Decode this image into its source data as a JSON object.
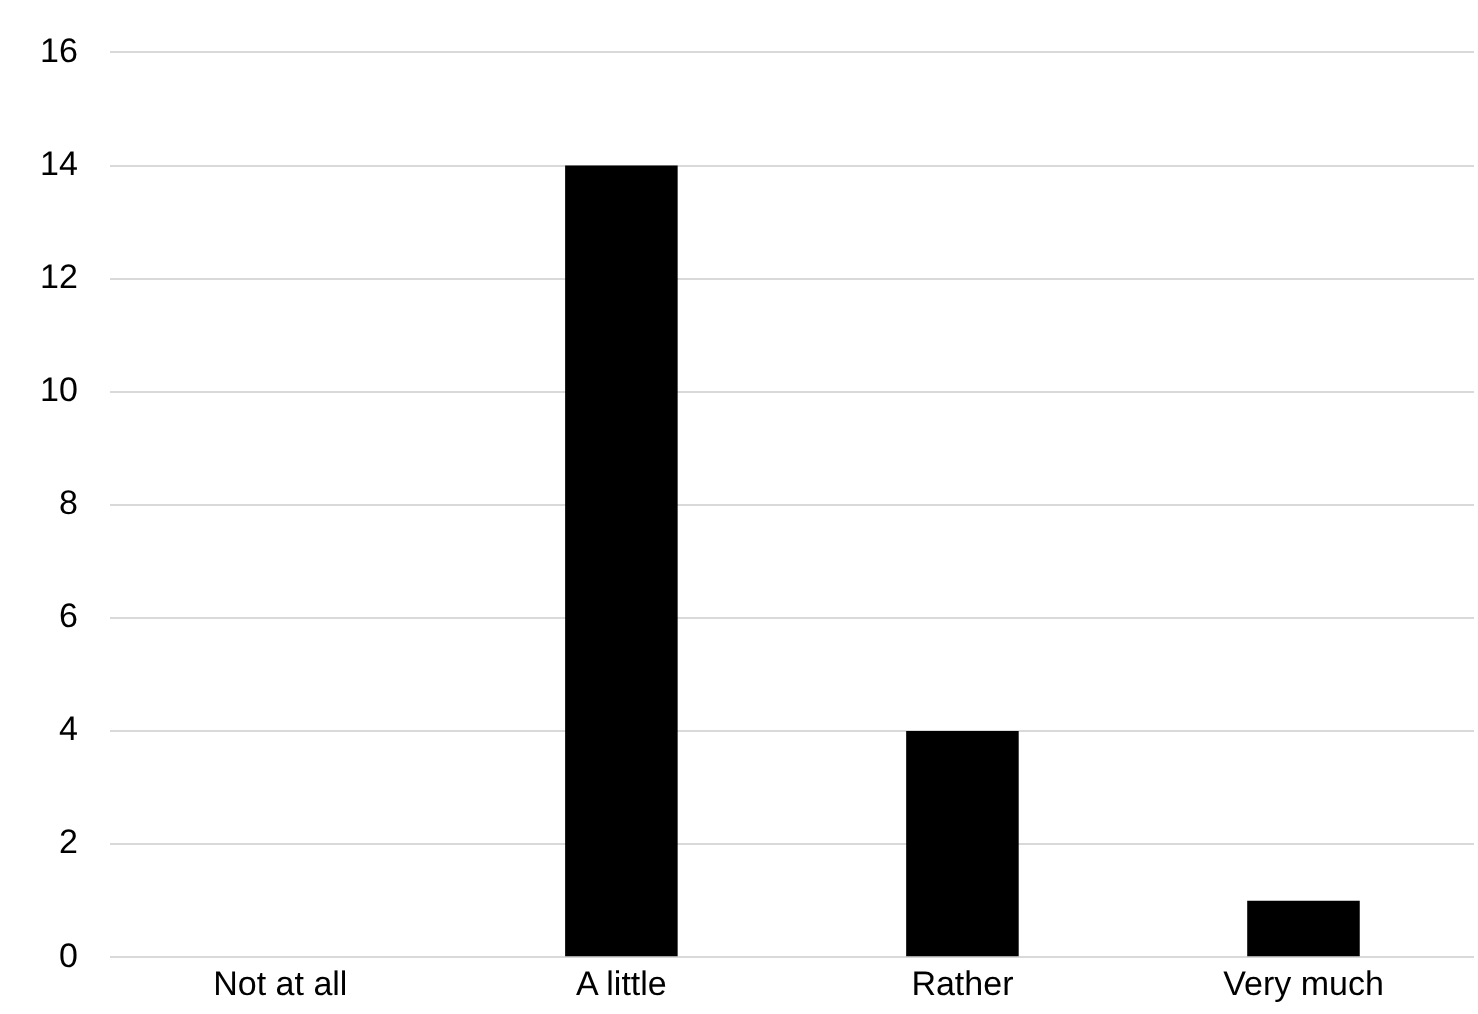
{
  "chart_data": {
    "type": "bar",
    "categories": [
      "Not at all",
      "A little",
      "Rather",
      "Very much"
    ],
    "values": [
      0,
      14,
      4,
      1
    ],
    "color": "#000000",
    "ylim": [
      0,
      16
    ],
    "yticks": [
      0,
      2,
      4,
      6,
      8,
      10,
      12,
      14,
      16
    ],
    "grid": "y",
    "legend": false
  }
}
